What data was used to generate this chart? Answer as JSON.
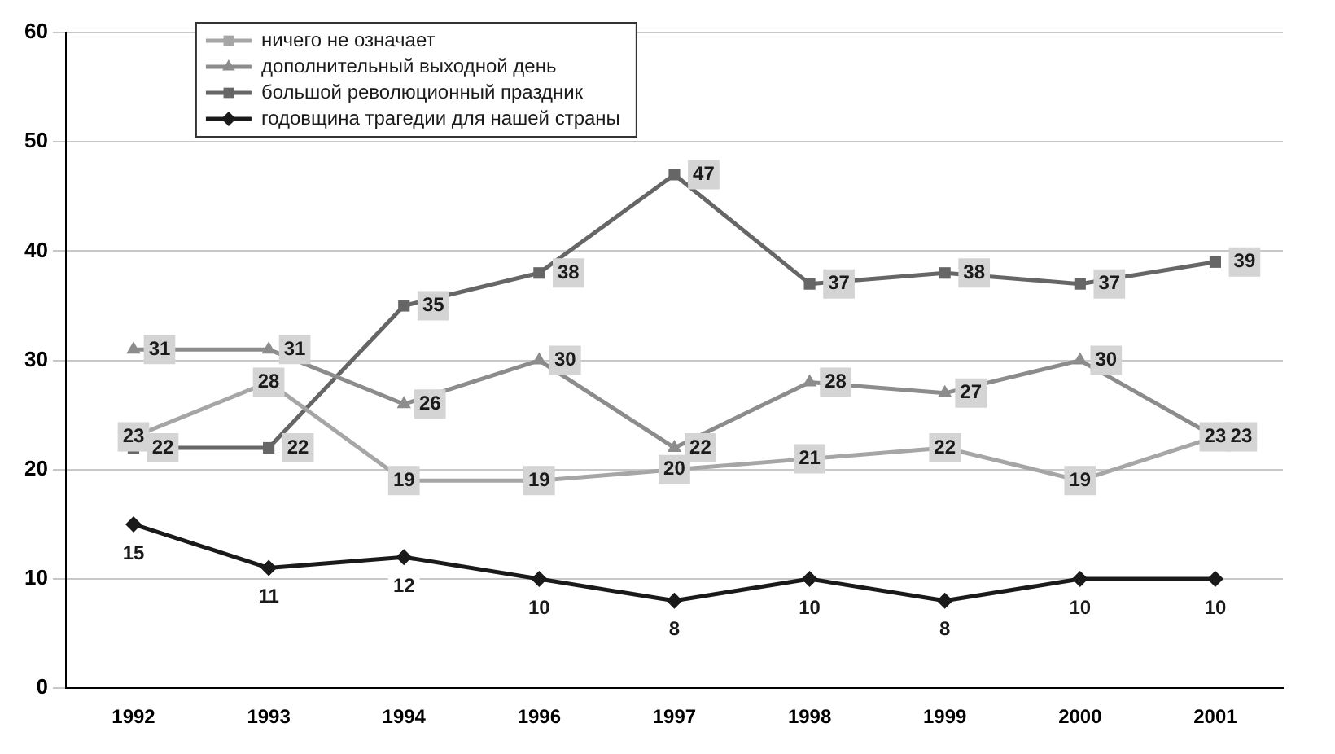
{
  "chart_data": {
    "type": "line",
    "categories": [
      "1992",
      "1993",
      "1994",
      "1996",
      "1997",
      "1998",
      "1999",
      "2000",
      "2001"
    ],
    "series": [
      {
        "name": "ничего не означает",
        "color": "#a6a6a6",
        "marker": "square",
        "values": [
          23,
          28,
          19,
          19,
          20,
          21,
          22,
          19,
          23
        ]
      },
      {
        "name": "дополнительный выходной день",
        "color": "#8c8c8c",
        "marker": "triangle",
        "values": [
          31,
          31,
          26,
          30,
          22,
          28,
          27,
          30,
          23
        ]
      },
      {
        "name": "большой революционный праздник",
        "color": "#666666",
        "marker": "square",
        "values": [
          22,
          22,
          35,
          38,
          47,
          37,
          38,
          37,
          39
        ]
      },
      {
        "name": "годовщина трагедии для нашей страны",
        "color": "#1a1a1a",
        "marker": "diamond",
        "values": [
          15,
          11,
          12,
          10,
          8,
          10,
          8,
          10,
          10
        ]
      }
    ],
    "ylim": [
      0,
      60
    ],
    "yticks": [
      0,
      10,
      20,
      30,
      40,
      50,
      60
    ],
    "grid": "y",
    "legend": "top left",
    "data_labels": true,
    "line_style": "solid"
  }
}
